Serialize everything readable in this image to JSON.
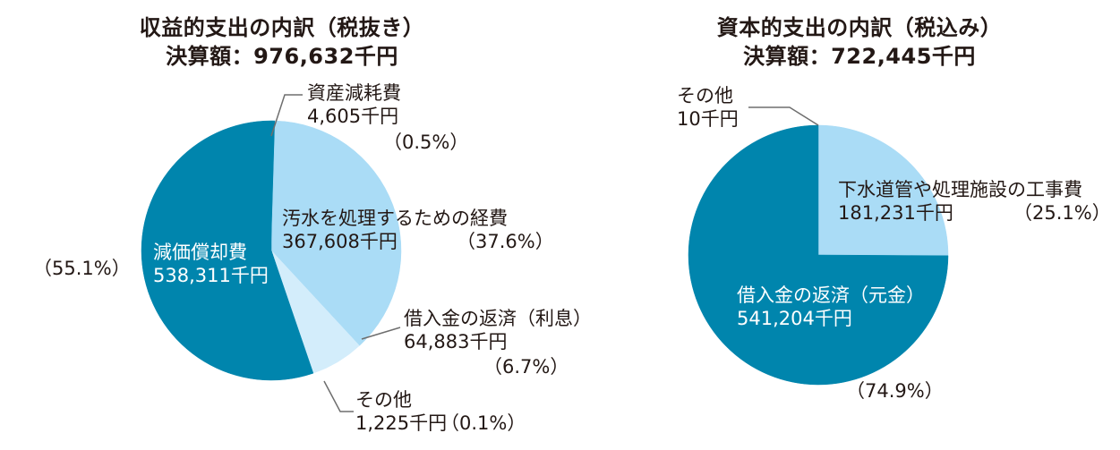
{
  "colors": {
    "dark": "#0085ad",
    "mid": "#aadcf6",
    "light": "#d3edfb",
    "leader": "#6e6e6e"
  },
  "chart_data": [
    {
      "type": "pie",
      "title_line1": "収益的支出の内訳（税抜き）",
      "title_line2": "決算額：976,632千円",
      "slices": [
        {
          "name": "資産減耗費",
          "value": 4605,
          "value_label": "4,605千円",
          "percent": 0.5,
          "percent_label": "（0.5%）"
        },
        {
          "name": "汚水を処理するための経費",
          "value": 367608,
          "value_label": "367,608千円",
          "percent": 37.6,
          "percent_label": "（37.6%）"
        },
        {
          "name": "借入金の返済（利息）",
          "value": 64883,
          "value_label": "64,883千円",
          "percent": 6.7,
          "percent_label": "（6.7%）"
        },
        {
          "name": "その他",
          "value": 1225,
          "value_label": "1,225千円",
          "percent": 0.1,
          "percent_label": "（0.1%）"
        },
        {
          "name": "減価償却費",
          "value": 538311,
          "value_label": "538,311千円",
          "percent": 55.1,
          "percent_label": "（55.1%）"
        }
      ]
    },
    {
      "type": "pie",
      "title_line1": "資本的支出の内訳（税込み）",
      "title_line2": "決算額：722,445千円",
      "slices": [
        {
          "name": "その他",
          "value": 10,
          "value_label": "10千円"
        },
        {
          "name": "下水道管や処理施設の工事費",
          "value": 181231,
          "value_label": "181,231千円",
          "percent": 25.1,
          "percent_label": "（25.1%）"
        },
        {
          "name": "借入金の返済（元金）",
          "value": 541204,
          "value_label": "541,204千円",
          "percent": 74.9,
          "percent_label": "（74.9%）"
        }
      ]
    }
  ]
}
